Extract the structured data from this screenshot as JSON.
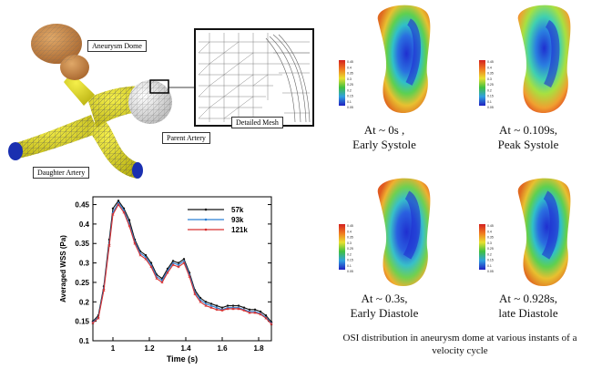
{
  "schematic": {
    "labels": {
      "aneurysm_dome": "Aneurysm Dome",
      "detailed_mesh": "Detailed Mesh",
      "parent_artery": "Parent Artery",
      "daughter_artery": "Daughter Artery"
    }
  },
  "osi_panels": [
    {
      "time_line": "At ~ 0s ,",
      "phase": "Early Systole",
      "scale_ticks": [
        "0.45",
        "0.4",
        "0.35",
        "0.3",
        "0.25",
        "0.2",
        "0.15",
        "0.1",
        "0.05"
      ]
    },
    {
      "time_line": "At ~ 0.109s,",
      "phase": "Peak Systole",
      "scale_ticks": [
        "0.45",
        "0.4",
        "0.35",
        "0.3",
        "0.25",
        "0.2",
        "0.15",
        "0.1",
        "0.05"
      ]
    },
    {
      "time_line": "At ~ 0.3s,",
      "phase": "Early Diastole",
      "scale_ticks": [
        "0.45",
        "0.4",
        "0.35",
        "0.3",
        "0.25",
        "0.2",
        "0.15",
        "0.1",
        "0.05"
      ]
    },
    {
      "time_line": "At ~ 0.928s,",
      "phase": "late Diastole",
      "scale_ticks": [
        "0.45",
        "0.4",
        "0.35",
        "0.3",
        "0.25",
        "0.2",
        "0.15",
        "0.1",
        "0.05"
      ]
    }
  ],
  "osi_caption_line1": "OSI distribution in aneurysm dome at various instants of a",
  "osi_caption_line2": "velocity cycle",
  "colors": {
    "dome": "#c98a4b",
    "artery": "#e6e020",
    "inlet": "#1a2fb0",
    "series_57k": "#111111",
    "series_93k": "#2a7fd4",
    "series_121k": "#d63030"
  },
  "chart_data": {
    "type": "line",
    "title": "",
    "xlabel": "Time (s)",
    "ylabel": "Averaged WSS (Pa)",
    "xlim": [
      0.89,
      1.87
    ],
    "ylim": [
      0.1,
      0.47
    ],
    "x_ticks": [
      1,
      1.2,
      1.4,
      1.6,
      1.8
    ],
    "x_tick_labels": [
      "1",
      "1.2",
      "1.4",
      "1.6",
      "1.8"
    ],
    "y_ticks": [
      0.1,
      0.15,
      0.2,
      0.25,
      0.3,
      0.35,
      0.4,
      0.45
    ],
    "y_tick_labels": [
      "0.1",
      "0.15",
      "0.2",
      "0.25",
      "0.3",
      "0.35",
      "0.4",
      "0.45"
    ],
    "legend_position": "top-right",
    "x": [
      0.89,
      0.92,
      0.95,
      0.98,
      1.0,
      1.03,
      1.06,
      1.09,
      1.12,
      1.15,
      1.18,
      1.21,
      1.24,
      1.27,
      1.3,
      1.33,
      1.36,
      1.39,
      1.42,
      1.45,
      1.48,
      1.51,
      1.54,
      1.57,
      1.6,
      1.63,
      1.66,
      1.69,
      1.72,
      1.75,
      1.78,
      1.81,
      1.84,
      1.87
    ],
    "series": [
      {
        "name": "57k",
        "marker": "circle",
        "values": [
          0.15,
          0.165,
          0.24,
          0.36,
          0.44,
          0.46,
          0.44,
          0.41,
          0.36,
          0.33,
          0.32,
          0.3,
          0.27,
          0.26,
          0.285,
          0.305,
          0.3,
          0.31,
          0.275,
          0.23,
          0.21,
          0.2,
          0.195,
          0.19,
          0.185,
          0.19,
          0.19,
          0.19,
          0.185,
          0.18,
          0.18,
          0.175,
          0.165,
          0.148
        ]
      },
      {
        "name": "93k",
        "marker": "triangle",
        "values": [
          0.148,
          0.16,
          0.235,
          0.35,
          0.43,
          0.455,
          0.435,
          0.4,
          0.355,
          0.325,
          0.315,
          0.295,
          0.265,
          0.255,
          0.28,
          0.3,
          0.295,
          0.305,
          0.27,
          0.225,
          0.205,
          0.195,
          0.19,
          0.185,
          0.18,
          0.185,
          0.185,
          0.185,
          0.18,
          0.175,
          0.175,
          0.17,
          0.16,
          0.145
        ]
      },
      {
        "name": "121k",
        "marker": "cross",
        "values": [
          0.146,
          0.158,
          0.23,
          0.345,
          0.425,
          0.45,
          0.43,
          0.395,
          0.35,
          0.32,
          0.31,
          0.29,
          0.26,
          0.25,
          0.275,
          0.295,
          0.29,
          0.3,
          0.265,
          0.22,
          0.2,
          0.19,
          0.185,
          0.18,
          0.178,
          0.182,
          0.182,
          0.182,
          0.178,
          0.172,
          0.172,
          0.168,
          0.158,
          0.143
        ]
      }
    ]
  }
}
